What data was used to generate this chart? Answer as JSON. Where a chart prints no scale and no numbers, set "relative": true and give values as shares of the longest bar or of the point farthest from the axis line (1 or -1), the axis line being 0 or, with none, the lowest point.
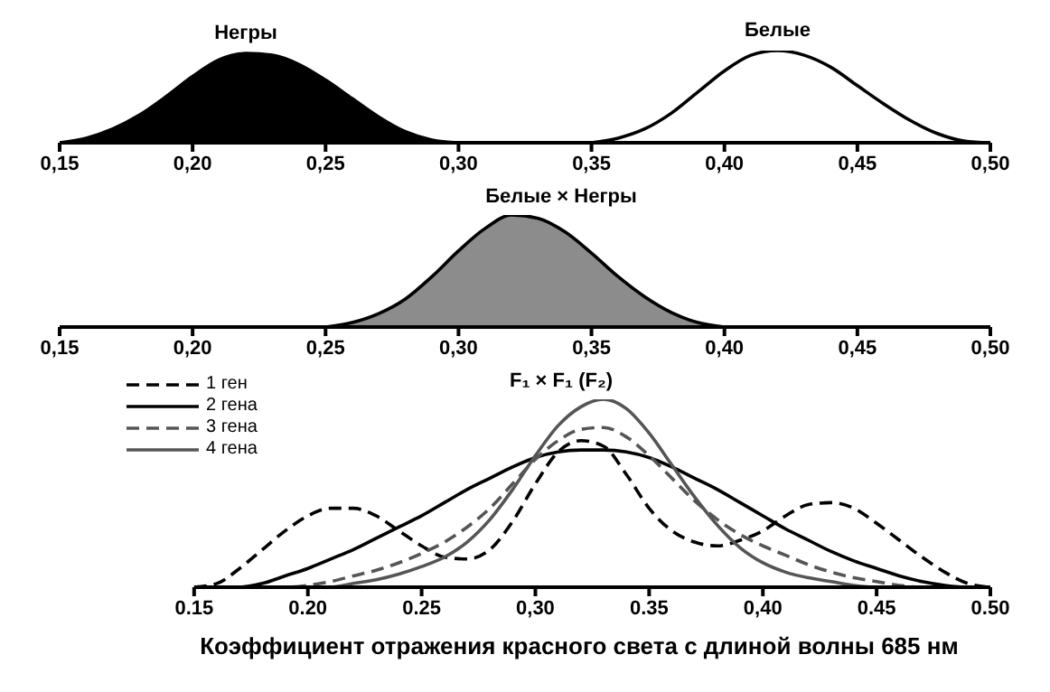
{
  "chart_data": [
    {
      "type": "area",
      "relative": true,
      "xlim": [
        0.15,
        0.5
      ],
      "xticks": [
        {
          "value": 0.15,
          "label": "0,15"
        },
        {
          "value": 0.2,
          "label": "0,20"
        },
        {
          "value": 0.25,
          "label": "0,25"
        },
        {
          "value": 0.3,
          "label": "0,30"
        },
        {
          "value": 0.35,
          "label": "0,35"
        },
        {
          "value": 0.4,
          "label": "0,40"
        },
        {
          "value": 0.45,
          "label": "0,45"
        },
        {
          "value": 0.5,
          "label": "0,50"
        }
      ],
      "grid": false,
      "legend": false,
      "series": [
        {
          "name": "Негры",
          "color": "#000000",
          "x": [
            0.15,
            0.16,
            0.17,
            0.18,
            0.19,
            0.2,
            0.21,
            0.22,
            0.23,
            0.24,
            0.25,
            0.26,
            0.27,
            0.28,
            0.29,
            0.3
          ],
          "values": [
            0,
            0.05,
            0.15,
            0.3,
            0.5,
            0.72,
            0.9,
            0.97,
            0.95,
            0.85,
            0.68,
            0.48,
            0.28,
            0.12,
            0.03,
            0
          ]
        },
        {
          "name": "Белые",
          "type": "line",
          "color": "#000000",
          "line_style": "solid",
          "x": [
            0.35,
            0.36,
            0.37,
            0.38,
            0.39,
            0.4,
            0.41,
            0.42,
            0.43,
            0.44,
            0.45,
            0.46,
            0.47,
            0.48,
            0.49,
            0.5
          ],
          "values": [
            0,
            0.05,
            0.15,
            0.32,
            0.55,
            0.78,
            0.95,
            1,
            0.95,
            0.82,
            0.62,
            0.42,
            0.24,
            0.1,
            0.02,
            0
          ]
        }
      ]
    },
    {
      "type": "area",
      "relative": true,
      "title": "Белые × Негры",
      "xlim": [
        0.15,
        0.5
      ],
      "xticks": [
        {
          "value": 0.15,
          "label": "0,15"
        },
        {
          "value": 0.2,
          "label": "0,20"
        },
        {
          "value": 0.25,
          "label": "0,25"
        },
        {
          "value": 0.3,
          "label": "0,30"
        },
        {
          "value": 0.35,
          "label": "0,35"
        },
        {
          "value": 0.4,
          "label": "0,40"
        },
        {
          "value": 0.45,
          "label": "0,45"
        },
        {
          "value": 0.5,
          "label": "0,50"
        }
      ],
      "grid": false,
      "legend": false,
      "series": [
        {
          "color": "#8c8c8c",
          "x": [
            0.25,
            0.26,
            0.27,
            0.28,
            0.29,
            0.3,
            0.31,
            0.32,
            0.33,
            0.34,
            0.35,
            0.36,
            0.37,
            0.38,
            0.39,
            0.4
          ],
          "values": [
            0,
            0.04,
            0.12,
            0.25,
            0.45,
            0.68,
            0.88,
            1,
            0.97,
            0.85,
            0.66,
            0.45,
            0.27,
            0.13,
            0.04,
            0
          ]
        }
      ]
    },
    {
      "type": "line",
      "relative": true,
      "title": "F₁ × F₁ (F₂)",
      "xlabel": "Коэффициент отражения красного света с длиной волны 685 нм",
      "xlim": [
        0.15,
        0.5
      ],
      "xticks": [
        {
          "value": 0.15,
          "label": "0.15"
        },
        {
          "value": 0.2,
          "label": "0.20"
        },
        {
          "value": 0.25,
          "label": "0.25"
        },
        {
          "value": 0.3,
          "label": "0,30"
        },
        {
          "value": 0.35,
          "label": "0.35"
        },
        {
          "value": 0.4,
          "label": "0,40"
        },
        {
          "value": 0.45,
          "label": "0.45"
        },
        {
          "value": 0.5,
          "label": "0.50"
        }
      ],
      "grid": false,
      "legend": "top left",
      "x": [
        0.15,
        0.16,
        0.17,
        0.18,
        0.19,
        0.2,
        0.21,
        0.22,
        0.23,
        0.24,
        0.25,
        0.26,
        0.27,
        0.28,
        0.29,
        0.3,
        0.31,
        0.32,
        0.33,
        0.34,
        0.35,
        0.36,
        0.37,
        0.38,
        0.39,
        0.4,
        0.41,
        0.42,
        0.43,
        0.44,
        0.45,
        0.46,
        0.47,
        0.48,
        0.49,
        0.5
      ],
      "series": [
        {
          "name": "1 ген",
          "color": "#000000",
          "line_style": "dashed",
          "values": [
            0,
            0.02,
            0.1,
            0.2,
            0.3,
            0.38,
            0.42,
            0.42,
            0.38,
            0.3,
            0.22,
            0.16,
            0.15,
            0.2,
            0.35,
            0.55,
            0.72,
            0.78,
            0.75,
            0.6,
            0.42,
            0.3,
            0.24,
            0.22,
            0.25,
            0.3,
            0.38,
            0.44,
            0.45,
            0.42,
            0.34,
            0.25,
            0.16,
            0.08,
            0.02,
            0
          ]
        },
        {
          "name": "2 гена",
          "color": "#000000",
          "line_style": "solid",
          "values": [
            0,
            0,
            0,
            0.02,
            0.06,
            0.1,
            0.15,
            0.2,
            0.26,
            0.32,
            0.38,
            0.45,
            0.52,
            0.58,
            0.64,
            0.69,
            0.72,
            0.73,
            0.73,
            0.72,
            0.69,
            0.64,
            0.58,
            0.52,
            0.45,
            0.38,
            0.31,
            0.25,
            0.19,
            0.14,
            0.1,
            0.06,
            0.03,
            0.01,
            0,
            0
          ]
        },
        {
          "name": "3 гена",
          "color": "#555555",
          "line_style": "dashed",
          "values": [
            0,
            0,
            0,
            0,
            0,
            0.01,
            0.03,
            0.06,
            0.09,
            0.13,
            0.18,
            0.24,
            0.32,
            0.42,
            0.55,
            0.68,
            0.78,
            0.84,
            0.85,
            0.8,
            0.7,
            0.58,
            0.46,
            0.36,
            0.28,
            0.22,
            0.17,
            0.12,
            0.08,
            0.05,
            0.03,
            0.01,
            0,
            0,
            0,
            0
          ]
        },
        {
          "name": "4 гена",
          "color": "#555555",
          "line_style": "solid",
          "values": [
            0,
            0,
            0,
            0,
            0,
            0,
            0,
            0.02,
            0.04,
            0.07,
            0.11,
            0.16,
            0.24,
            0.36,
            0.52,
            0.7,
            0.86,
            0.96,
            1,
            0.95,
            0.82,
            0.65,
            0.48,
            0.33,
            0.21,
            0.13,
            0.08,
            0.05,
            0.03,
            0.01,
            0,
            0,
            0,
            0,
            0,
            0
          ]
        }
      ]
    }
  ]
}
